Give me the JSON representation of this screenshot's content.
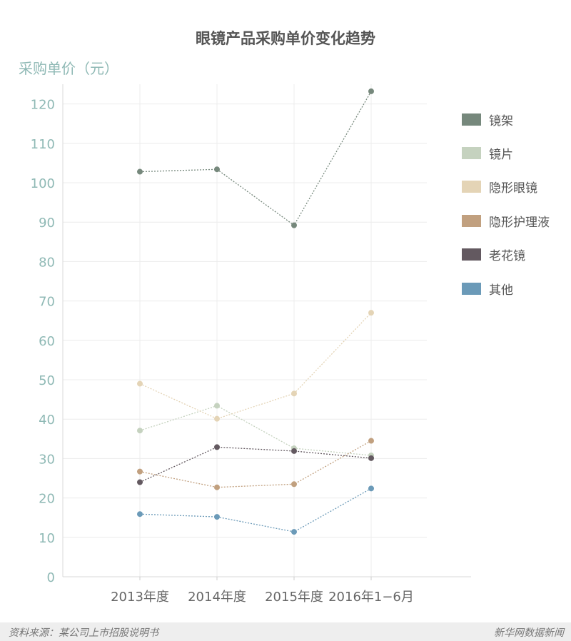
{
  "chart_data": {
    "type": "line",
    "title": "眼镜产品采购单价变化趋势",
    "ylabel": "采购单价（元）",
    "xlabel": "",
    "categories": [
      "2013年度",
      "2014年度",
      "2015年度",
      "2016年1−6月"
    ],
    "yticks": [
      "0",
      "10",
      "20",
      "30",
      "40",
      "50",
      "60",
      "70",
      "80",
      "90",
      "100",
      "110",
      "120"
    ],
    "ylim": [
      0,
      125
    ],
    "grid": true,
    "legend_position": "right",
    "series": [
      {
        "name": "镜架",
        "color": "#76887c",
        "values": [
          102.8,
          103.4,
          89.2,
          123.2
        ]
      },
      {
        "name": "镜片",
        "color": "#c5d2bf",
        "values": [
          37.1,
          43.4,
          32.6,
          30.8
        ]
      },
      {
        "name": "隐形眼镜",
        "color": "#e4d4b6",
        "values": [
          49.0,
          40.1,
          46.5,
          67.0
        ]
      },
      {
        "name": "隐形护理液",
        "color": "#c1a07f",
        "values": [
          26.7,
          22.7,
          23.5,
          34.5
        ]
      },
      {
        "name": "老花镜",
        "color": "#635960",
        "values": [
          24.0,
          32.9,
          31.9,
          30.1
        ]
      },
      {
        "name": "其他",
        "color": "#6b9ab8",
        "values": [
          15.9,
          15.2,
          11.4,
          22.4
        ]
      }
    ]
  },
  "footer": {
    "source": "资料来源：某公司上市招股说明书",
    "brand": "新华网数据新闻"
  }
}
